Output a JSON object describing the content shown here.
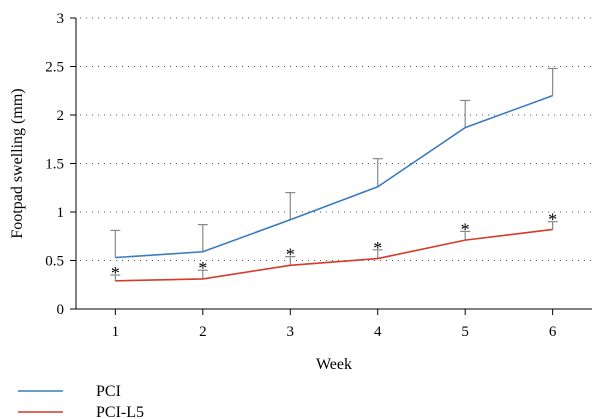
{
  "chart_data": {
    "type": "line",
    "xlabel": "Week",
    "ylabel": "Footpad swelling (mm)",
    "x": [
      1,
      2,
      3,
      4,
      5,
      6
    ],
    "xtick_labels": [
      "1",
      "2",
      "3",
      "4",
      "5",
      "6"
    ],
    "ylim": [
      0,
      3
    ],
    "yticks": [
      0,
      0.5,
      1,
      1.5,
      2,
      2.5,
      3
    ],
    "ytick_labels": [
      "0",
      "0.5",
      "1",
      "1.5",
      "2",
      "2.5",
      "3"
    ],
    "grid": "horizontal dotted",
    "legend_position": "bottom-left",
    "series": [
      {
        "name": "PCI",
        "color": "#3a7bbf",
        "values": [
          0.53,
          0.59,
          0.92,
          1.26,
          1.87,
          2.2
        ],
        "error_upper": [
          0.28,
          0.28,
          0.28,
          0.29,
          0.28,
          0.28
        ],
        "annotations": [
          "",
          "",
          "",
          "",
          "",
          ""
        ]
      },
      {
        "name": "PCI-L5",
        "color": "#d63a2a",
        "values": [
          0.29,
          0.31,
          0.45,
          0.52,
          0.71,
          0.82
        ],
        "error_upper": [
          0.06,
          0.09,
          0.09,
          0.09,
          0.09,
          0.08
        ],
        "annotations": [
          "*",
          "*",
          "*",
          "*",
          "*",
          "*"
        ]
      }
    ]
  }
}
